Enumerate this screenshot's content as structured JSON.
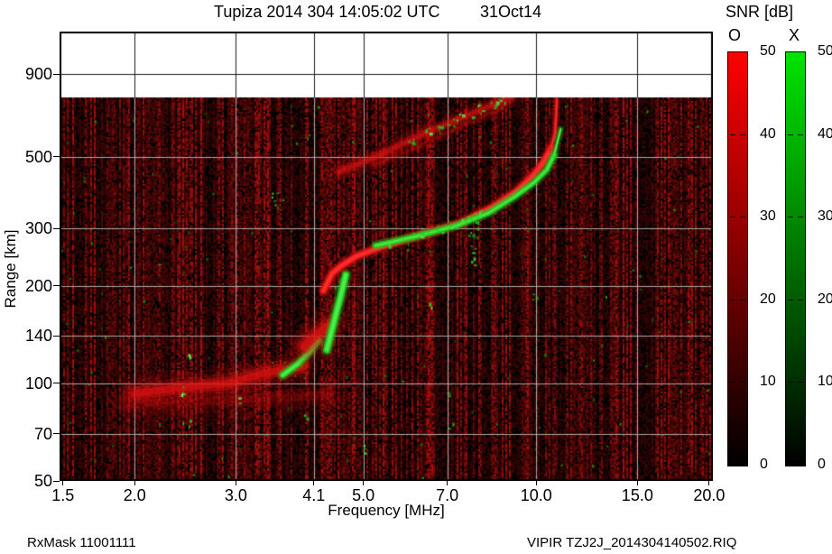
{
  "header": {
    "title": "Tupiza 2014 304 14:05:02 UTC",
    "date": "31Oct14"
  },
  "footer": {
    "rx_mask": "RxMask 11001111",
    "filename": "VIPIR  TZJ2J_2014304140502.RIQ"
  },
  "snr_legend": {
    "title": "SNR [dB]",
    "min": 0,
    "max": 50,
    "tick_values": [
      50,
      40,
      30,
      20,
      10,
      0
    ],
    "bars": [
      {
        "label": "O",
        "top_color": "#ff0000",
        "bottom_color": "#000000"
      },
      {
        "label": "X",
        "top_color": "#00e400",
        "bottom_color": "#000000"
      }
    ]
  },
  "chart_data": {
    "type": "heatmap",
    "title": "Tupiza 2014 304 14:05:02 UTC   31Oct14",
    "xlabel": "Frequency [MHz]",
    "ylabel": "Range [km]",
    "x_scale": "log",
    "y_scale": "log",
    "xlim": [
      1.48,
      20.3
    ],
    "ylim": [
      50,
      1217
    ],
    "x_ticks": [
      {
        "v": 1.5,
        "label": "1.5"
      },
      {
        "v": 2.0,
        "label": "2.0"
      },
      {
        "v": 3.0,
        "label": "3.0"
      },
      {
        "v": 4.1,
        "label": "4.1"
      },
      {
        "v": 5.0,
        "label": "5.0"
      },
      {
        "v": 7.0,
        "label": "7.0"
      },
      {
        "v": 10.0,
        "label": "10.0"
      },
      {
        "v": 15.0,
        "label": "15.0"
      },
      {
        "v": 20.0,
        "label": "20.0"
      }
    ],
    "y_ticks": [
      {
        "v": 900,
        "label": "900"
      },
      {
        "v": 500,
        "label": "500"
      },
      {
        "v": 300,
        "label": "300"
      },
      {
        "v": 200,
        "label": "200"
      },
      {
        "v": 140,
        "label": "140"
      },
      {
        "v": 100,
        "label": "100"
      },
      {
        "v": 70,
        "label": "70"
      },
      {
        "v": 50,
        "label": "50"
      }
    ],
    "x_gridlines": [
      2.0,
      3.0,
      4.1,
      5.0,
      7.0,
      10.0,
      15.0
    ],
    "y_gridlines": [
      70,
      100,
      140,
      200,
      300,
      500,
      900
    ],
    "data_max_range_km": 760,
    "background": "#000000",
    "o_color": "#e01212",
    "x_color": "#22cf22",
    "noise": {
      "seed": 20141031,
      "density": 0.55,
      "green_specks": 150
    },
    "rfi_columns": [
      {
        "f_mhz": 12.5,
        "intensity": 0.3
      },
      {
        "f_mhz": 6.55,
        "intensity": 0.12
      }
    ],
    "traces": [
      {
        "name": "E-region-O",
        "mode": "O",
        "style": "diffuse",
        "width": 13,
        "intensity": 1.15,
        "points": [
          [
            2.0,
            93
          ],
          [
            2.4,
            97
          ],
          [
            2.9,
            100
          ],
          [
            3.33,
            107
          ],
          [
            3.7,
            111
          ],
          [
            3.9,
            112
          ]
        ]
      },
      {
        "name": "E-region-O-lower",
        "mode": "O",
        "style": "diffuse",
        "width": 16,
        "intensity": 0.35,
        "points": [
          [
            1.95,
            86
          ],
          [
            2.6,
            88
          ],
          [
            3.4,
            90
          ],
          [
            4.35,
            92
          ]
        ]
      },
      {
        "name": "E-region-X",
        "mode": "X",
        "style": "solid",
        "width": 7,
        "points": [
          [
            3.62,
            106
          ],
          [
            3.85,
            115
          ],
          [
            4.03,
            125
          ],
          [
            4.18,
            136
          ]
        ]
      },
      {
        "name": "F1-cusp-O",
        "mode": "O",
        "style": "diffuse",
        "width": 15,
        "intensity": 1.3,
        "points": [
          [
            3.95,
            130
          ],
          [
            4.15,
            141
          ],
          [
            4.33,
            150
          ]
        ]
      },
      {
        "name": "F1-X",
        "mode": "X",
        "style": "solid",
        "width": 8,
        "points": [
          [
            4.32,
            127
          ],
          [
            4.45,
            156
          ],
          [
            4.56,
            184
          ],
          [
            4.66,
            216
          ]
        ]
      },
      {
        "name": "F2-O",
        "mode": "O",
        "style": "solid",
        "width": 8,
        "points": [
          [
            4.26,
            193
          ],
          [
            4.41,
            218
          ],
          [
            4.57,
            230
          ],
          [
            4.87,
            247
          ],
          [
            5.52,
            268
          ],
          [
            6.38,
            289
          ],
          [
            7.37,
            312
          ],
          [
            8.37,
            349
          ],
          [
            9.23,
            391
          ],
          [
            9.85,
            436
          ],
          [
            10.28,
            480
          ],
          [
            10.59,
            529
          ]
        ]
      },
      {
        "name": "F2-O-asymptote",
        "mode": "O",
        "style": "solid",
        "width": 3.5,
        "points": [
          [
            10.59,
            529
          ],
          [
            10.78,
            590
          ],
          [
            10.83,
            670
          ],
          [
            10.86,
            752
          ]
        ]
      },
      {
        "name": "F2-X",
        "mode": "X",
        "style": "solid",
        "width": 6,
        "points": [
          [
            5.25,
            266
          ],
          [
            6.18,
            284
          ],
          [
            7.28,
            307
          ],
          [
            8.25,
            335
          ],
          [
            9.16,
            376
          ],
          [
            9.92,
            417
          ],
          [
            10.43,
            456
          ],
          [
            10.74,
            505
          ]
        ]
      },
      {
        "name": "F2-X-asymptote",
        "mode": "X",
        "style": "solid",
        "width": 3,
        "points": [
          [
            10.74,
            505
          ],
          [
            10.91,
            564
          ],
          [
            11.03,
            609
          ]
        ]
      },
      {
        "name": "F2-X-patches",
        "mode": "X",
        "style": "speckle",
        "width": 3,
        "points": [
          [
            5.6,
            272
          ],
          [
            5.9,
            280
          ],
          [
            6.2,
            288
          ],
          [
            6.35,
            293
          ],
          [
            6.5,
            296
          ],
          [
            6.8,
            303
          ],
          [
            7.1,
            310
          ],
          [
            7.5,
            322
          ],
          [
            7.9,
            335
          ]
        ]
      },
      {
        "name": "oblique-O",
        "mode": "O",
        "style": "diffuse",
        "width": 8,
        "intensity": 0.95,
        "points": [
          [
            4.53,
            450
          ],
          [
            5.33,
            505
          ],
          [
            6.38,
            590
          ],
          [
            7.64,
            674
          ],
          [
            8.84,
            752
          ],
          [
            9.05,
            758
          ]
        ]
      },
      {
        "name": "oblique-O-faint",
        "mode": "O",
        "style": "diffuse",
        "width": 5,
        "intensity": 0.4,
        "points": [
          [
            5.2,
            470
          ],
          [
            6.4,
            548
          ],
          [
            7.7,
            640
          ],
          [
            8.8,
            712
          ]
        ]
      },
      {
        "name": "oblique-X-speckle",
        "mode": "X",
        "style": "speckle",
        "width": 3,
        "points": [
          [
            6.1,
            570
          ],
          [
            6.45,
            598
          ],
          [
            6.75,
            618
          ],
          [
            7.05,
            640
          ],
          [
            7.35,
            658
          ],
          [
            7.7,
            682
          ],
          [
            8.05,
            706
          ],
          [
            8.45,
            730
          ],
          [
            8.75,
            748
          ]
        ]
      },
      {
        "name": "spread-X-column",
        "mode": "X",
        "style": "speckle",
        "width": 3,
        "points": [
          [
            7.82,
            238
          ],
          [
            7.76,
            252
          ],
          [
            7.72,
            266
          ],
          [
            7.74,
            280
          ],
          [
            7.8,
            294
          ],
          [
            7.75,
            308
          ],
          [
            7.78,
            320
          ]
        ]
      },
      {
        "name": "scatter-green-dots",
        "mode": "X",
        "style": "speckle",
        "width": 3,
        "points": [
          [
            2.45,
            123
          ],
          [
            2.45,
            95
          ],
          [
            2.46,
            75
          ],
          [
            3.0,
            88
          ],
          [
            3.98,
            80
          ],
          [
            7.03,
            94
          ],
          [
            7.1,
            77
          ],
          [
            9.95,
            187
          ],
          [
            3.5,
            380
          ],
          [
            3.55,
            360
          ],
          [
            5.05,
            63
          ],
          [
            6.6,
            178
          ]
        ]
      }
    ]
  }
}
